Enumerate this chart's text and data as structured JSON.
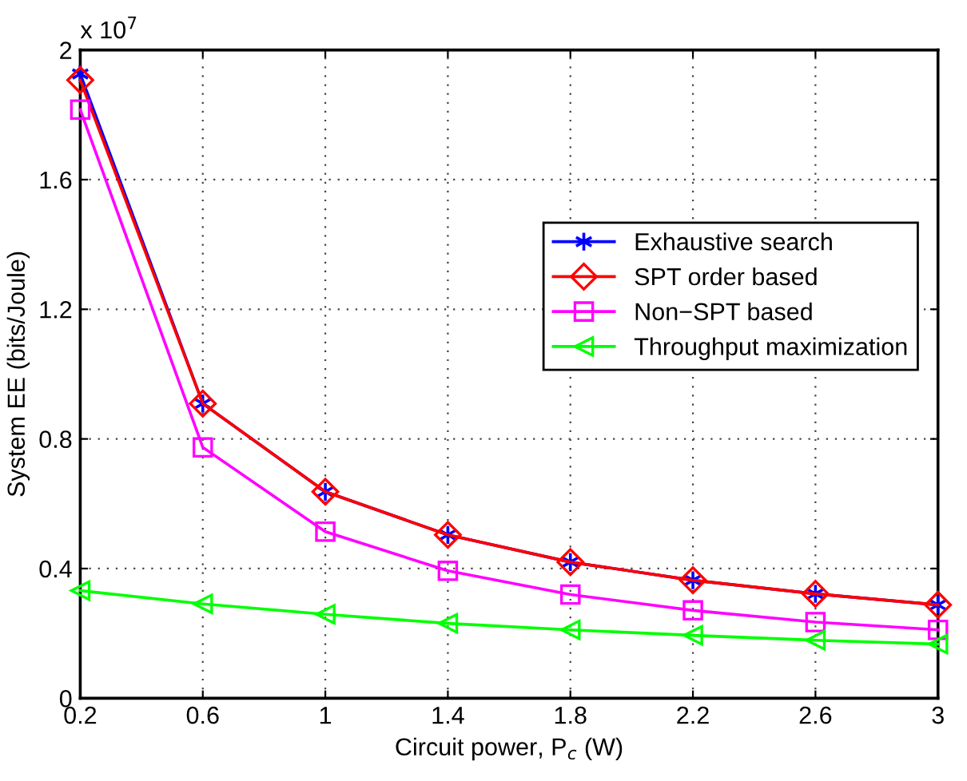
{
  "chart_data": {
    "type": "line",
    "xlabel": "Circuit power, P$_{c}$ (W)",
    "ylabel": "System EE (bits/Joule)",
    "annotations": [
      "x 10$^{7}$"
    ],
    "x": [
      0.2,
      0.6,
      1,
      1.4,
      1.8,
      2.2,
      2.6,
      3
    ],
    "series": [
      {
        "name": "Exhaustive search",
        "color": "#0000ff",
        "marker": "cross",
        "values": [
          1.926,
          0.909,
          0.637,
          0.504,
          0.42,
          0.364,
          0.322,
          0.288
        ]
      },
      {
        "name": "SPT order based",
        "color": "#ff0000",
        "marker": "diamond",
        "values": [
          1.907,
          0.909,
          0.637,
          0.504,
          0.42,
          0.364,
          0.322,
          0.288
        ]
      },
      {
        "name": "Non−SPT based",
        "color": "#ff00ff",
        "marker": "square",
        "values": [
          1.816,
          0.774,
          0.514,
          0.393,
          0.32,
          0.271,
          0.235,
          0.211
        ]
      },
      {
        "name": "Throughput maximization",
        "color": "#00ff00",
        "marker": "triangle",
        "values": [
          0.332,
          0.291,
          0.259,
          0.231,
          0.211,
          0.194,
          0.179,
          0.167
        ]
      }
    ],
    "xlim": [
      0.2,
      3
    ],
    "xticks": [
      0.2,
      0.6,
      1,
      1.4,
      1.8,
      2.2,
      2.6,
      3
    ],
    "ylim": [
      0,
      2
    ],
    "yticks": [
      0,
      0.4,
      0.8,
      1.2,
      1.6,
      2
    ],
    "grid": true,
    "legend": "right",
    "line_style": "solid"
  }
}
